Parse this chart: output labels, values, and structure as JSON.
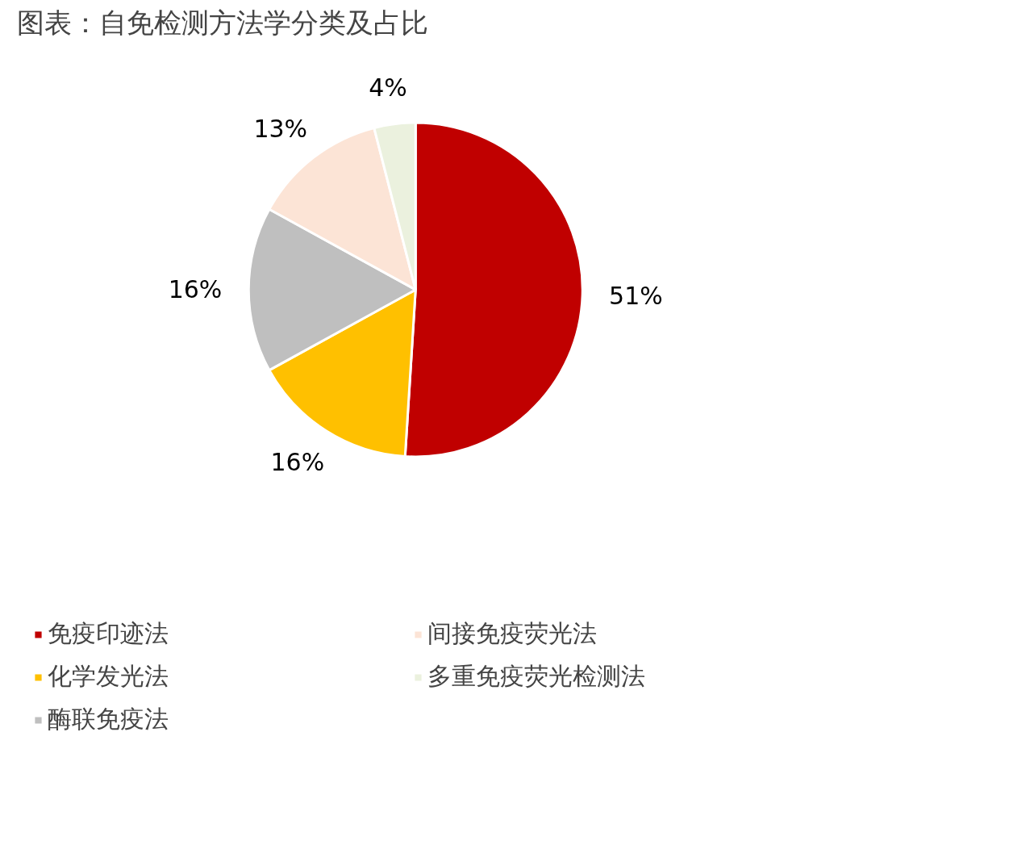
{
  "chart_data": {
    "type": "pie",
    "title": "图表：自免检测方法学分类及占比",
    "categories": [
      "免疫印迹法",
      "化学发光法",
      "酶联免疫法",
      "间接免疫荧光法",
      "多重免疫荧光检测法"
    ],
    "values": [
      51,
      16,
      16,
      13,
      4
    ],
    "colors": [
      "#c00000",
      "#ffc000",
      "#bfbfbf",
      "#fce4d6",
      "#ebf1de"
    ],
    "value_labels": [
      "51%",
      "16%",
      "16%",
      "13%",
      "4%"
    ],
    "legend": "bottom"
  }
}
